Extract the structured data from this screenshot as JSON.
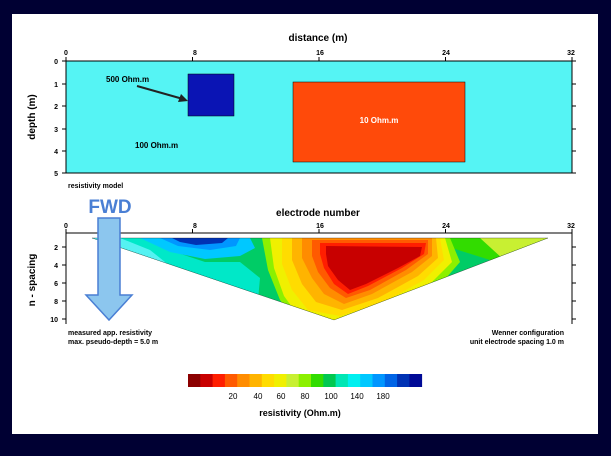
{
  "colors": {
    "background": "#000033",
    "panel": "#ffffff",
    "model_background": "#55f4f4",
    "block_500": "#0a14b4",
    "block_10": "#ff4a0a",
    "fwd_text": "#4a7fd4",
    "fwd_arrow": "#8cc6ee",
    "fwd_arrow_stroke": "#4a7fd4"
  },
  "model": {
    "title": "distance (m)",
    "ylabel": "depth (m)",
    "x_ticks": [
      "0",
      "8",
      "16",
      "24",
      "32"
    ],
    "y_ticks": [
      "0",
      "1",
      "2",
      "3",
      "4",
      "5"
    ],
    "xlim": [
      0,
      32
    ],
    "ylim": [
      0,
      5
    ],
    "labels": {
      "block_500": "500 Ohm.m",
      "block_10": "10 Ohm.m",
      "background": "100 Ohm.m"
    },
    "caption": "resistivity model"
  },
  "fwd": {
    "label": "FWD"
  },
  "pseudo": {
    "title": "electrode number",
    "ylabel": "n - spacing",
    "x_ticks": [
      "0",
      "8",
      "16",
      "24",
      "32"
    ],
    "y_ticks": [
      "2",
      "4",
      "6",
      "8",
      "10"
    ],
    "xlim": [
      0,
      32
    ],
    "ylim": [
      0,
      10.5
    ],
    "caption_left": [
      "measured app. resistivity",
      "max. pseudo-depth = 5.0 m"
    ],
    "caption_right": [
      "Wenner configuration",
      "unit electrode spacing 1.0 m"
    ]
  },
  "colorbar": {
    "title": "resistivity (Ohm.m)",
    "tick_labels": [
      "20",
      "40",
      "60",
      "80",
      "100",
      "140",
      "180"
    ],
    "colors": [
      "#8b0000",
      "#c80000",
      "#ff1e00",
      "#ff5a00",
      "#ff8c00",
      "#ffb400",
      "#ffdc00",
      "#f0f000",
      "#c8f032",
      "#8cf000",
      "#32dc00",
      "#00c850",
      "#00e6b4",
      "#00f0f0",
      "#00c8ff",
      "#0096ff",
      "#0064e6",
      "#0032b4",
      "#000a96"
    ]
  }
}
